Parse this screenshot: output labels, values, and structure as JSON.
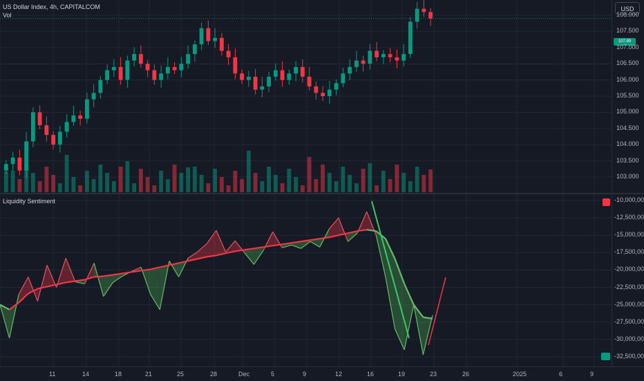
{
  "header": {
    "symbol": "US Dollar Index, 4h, CAPITALCOM",
    "volume_label": "Vol"
  },
  "indicator": {
    "title": "Liquidity Sentiment"
  },
  "currency_button": "USD",
  "price_tag": "107.89",
  "colors": {
    "bg": "#161a25",
    "up": "#089981",
    "down": "#f23645",
    "grid": "#232732"
  },
  "chart_data": [
    {
      "type": "candlestick",
      "title": "US Dollar Index, 4h, CAPITALCOM",
      "ylim": [
        102.7,
        108.3
      ],
      "yticks": [
        "108.000",
        "107.500",
        "107.000",
        "106.500",
        "106.000",
        "105.500",
        "105.000",
        "104.500",
        "104.000",
        "103.500",
        "103.000"
      ],
      "xticks": [
        "6",
        "11",
        "14",
        "18",
        "21",
        "25",
        "28",
        "Dec",
        "5",
        "9",
        "12",
        "16",
        "19",
        "23",
        "26",
        "2025",
        "6",
        "9"
      ],
      "closes": [
        103.4,
        103.6,
        103.2,
        104.1,
        105.0,
        104.6,
        104.3,
        104.0,
        104.4,
        104.7,
        104.9,
        104.8,
        105.4,
        105.6,
        106.0,
        106.3,
        106.4,
        106.0,
        106.6,
        106.8,
        106.5,
        106.3,
        106.0,
        106.2,
        106.4,
        106.3,
        106.5,
        106.8,
        107.1,
        107.6,
        107.2,
        107.3,
        106.9,
        106.7,
        106.2,
        106.0,
        106.1,
        105.7,
        105.8,
        106.1,
        106.3,
        106.0,
        106.2,
        106.4,
        106.1,
        105.8,
        105.6,
        105.5,
        105.7,
        105.9,
        106.2,
        106.4,
        106.6,
        106.5,
        106.9,
        106.7,
        106.8,
        106.7,
        106.6,
        106.8,
        107.8,
        108.2,
        108.1,
        107.9
      ]
    },
    {
      "type": "line",
      "title": "Liquidity Sentiment",
      "ylim": [
        -33000000,
        -9500000
      ],
      "yticks": [
        "-10,000,000",
        "-12,500,000",
        "-15,000,000",
        "-17,500,000",
        "-20,000,000",
        "-22,500,000",
        "-25,000,000",
        "-27,500,000",
        "-30,000,000",
        "-32,500,000"
      ],
      "series": [
        {
          "values": [
            -25000000,
            -29800000,
            -23500000,
            -21000000,
            -24500000,
            -19300000,
            -22500000,
            -18300000,
            -21700000,
            -22000000,
            -19000000,
            -23800000,
            -21800000,
            -20900000,
            -20200000,
            -19600000,
            -23500000,
            -25700000,
            -18700000,
            -21000000,
            -18300000,
            -17400000,
            -16200000,
            -14300000,
            -17400000,
            -15800000,
            -17500000,
            -19200000,
            -17200000,
            -14500000,
            -16800000,
            -16400000,
            -16900000,
            -15900000,
            -16700000,
            -14100000,
            -12500000,
            -15900000,
            -14700000,
            -11600000,
            -15000000,
            -21000000,
            -28500000,
            -31500000,
            -25000000,
            -32200000,
            -26500000
          ]
        },
        {
          "values": [
            -25000000,
            -25700000,
            -24700000,
            -23400000,
            -22700000,
            -22400000,
            -22100000,
            -21800000,
            -21600000,
            -21400000,
            -21000000,
            -20900000,
            -20700000,
            -20500000,
            -20300000,
            -20100000,
            -19900000,
            -19600000,
            -19300000,
            -19000000,
            -18700000,
            -18400000,
            -18100000,
            -17900000,
            -17600000,
            -17300000,
            -17100000,
            -16900000,
            -16700000,
            -16500000,
            -16300000,
            -16100000,
            -15900000,
            -15700000,
            -15500000,
            -15300000,
            -15000000,
            -14700000,
            -14400000,
            -14200000,
            -14400000,
            -15500000,
            -18400000,
            -22000000,
            -25000000,
            -26800000,
            -27000000
          ]
        }
      ]
    }
  ]
}
